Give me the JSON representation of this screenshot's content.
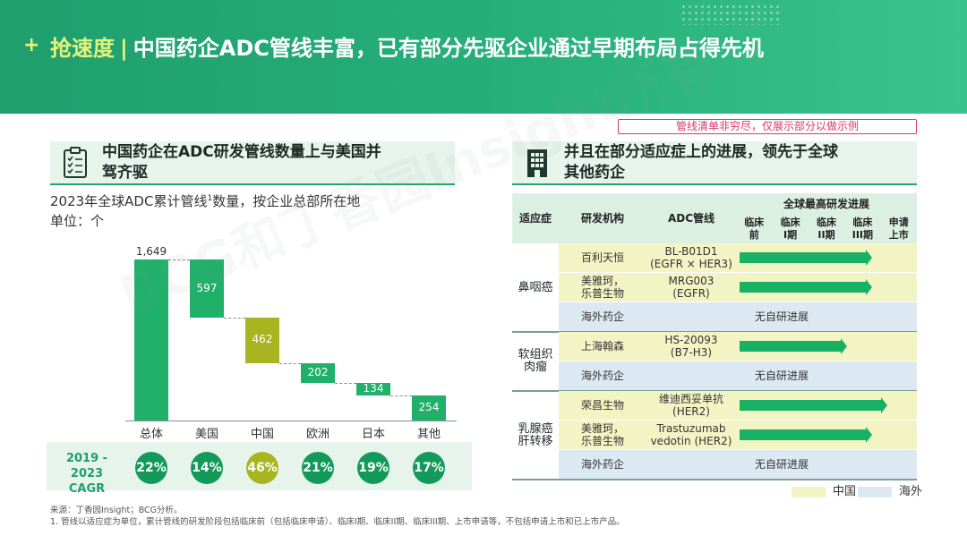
{
  "header": {
    "plus": "+",
    "highlight": "抢速度",
    "separator": "|",
    "title": "中国药企ADC管线丰富，已有部分先驱企业通过早期布局占得先机"
  },
  "note": "管线清单非穷尽，仅展示部分以做示例",
  "left_panel": {
    "icon": "clipboard-checklist-icon",
    "title_line1": "中国药企在ADC研发管线数量上与美国并",
    "title_line2": "驾齐驱",
    "subtitle_prefix": "2023年全球ADC累计管线",
    "subtitle_sup": "1",
    "subtitle_suffix": "数量，按企业总部所在地",
    "unit": "单位：个"
  },
  "chart_data": {
    "type": "bar",
    "subtype": "waterfall",
    "categories": [
      "总体",
      "美国",
      "中国",
      "欧洲",
      "日本",
      "其他"
    ],
    "values": [
      1649,
      597,
      462,
      202,
      134,
      254
    ],
    "value_labels": [
      "1,649",
      "597",
      "462",
      "202",
      "134",
      "254"
    ],
    "highlight_category": "中国",
    "ylim": [
      0,
      1649
    ],
    "cagr_label_line1": "2019 - 2023",
    "cagr_label_line2": "CAGR",
    "cagr": [
      "22%",
      "14%",
      "46%",
      "21%",
      "19%",
      "17%"
    ],
    "colors": {
      "bar": "#21b06a",
      "highlight": "#a9b520"
    }
  },
  "right_panel": {
    "icon": "building-icon",
    "title_line1": "并且在部分适应症上的进展，领先于全球",
    "title_line2": "其他药企"
  },
  "table": {
    "headers": {
      "indication": "适应症",
      "org": "研发机构",
      "adc": "ADC管线",
      "progress": "全球最高研发进展",
      "stages": [
        "临床\n前",
        "临床\nI期",
        "临床\nII期",
        "临床\nIII期",
        "申请\n上市"
      ]
    },
    "groups": [
      {
        "indication": "鼻咽癌",
        "rows": [
          {
            "org": "百利天恒",
            "adc": "BL-B01D1\n(EGFR × HER3)",
            "type": "cn",
            "stage": 3.7
          },
          {
            "org": "美雅珂，\n乐普生物",
            "adc": "MRG003\n(EGFR)",
            "type": "cn",
            "stage": 3.7
          },
          {
            "org": "海外药企",
            "adc": "无自研进展",
            "type": "os",
            "stage": 0
          }
        ]
      },
      {
        "indication": "软组织\n肉瘤",
        "rows": [
          {
            "org": "上海翰森",
            "adc": "HS-20093\n(B7-H3)",
            "type": "cn",
            "stage": 3.0
          },
          {
            "org": "海外药企",
            "adc": "无自研进展",
            "type": "os",
            "stage": 0
          }
        ]
      },
      {
        "indication": "乳腺癌\n肝转移",
        "rows": [
          {
            "org": "荣昌生物",
            "adc": "维迪西妥单抗\n(HER2)",
            "type": "cn",
            "stage": 4.1
          },
          {
            "org": "美雅珂，\n乐普生物",
            "adc": "Trastuzumab\nvedotin (HER2)",
            "type": "cn",
            "stage": 3.7
          },
          {
            "org": "海外药企",
            "adc": "无自研进展",
            "type": "os",
            "stage": 0
          }
        ]
      }
    ]
  },
  "legend": {
    "china": "中国",
    "overseas": "海外"
  },
  "footnote": {
    "source": "来源：丁香园Insight；BCG分析。",
    "note": "1. 管线以适应症为单位，累计管线的研发阶段包括临床前（包括临床申请）、临床I期、临床II期、临床III期、上市申请等，不包括申请上市和已上市产品。"
  },
  "watermark": "BCG和丁香园Insight所有"
}
